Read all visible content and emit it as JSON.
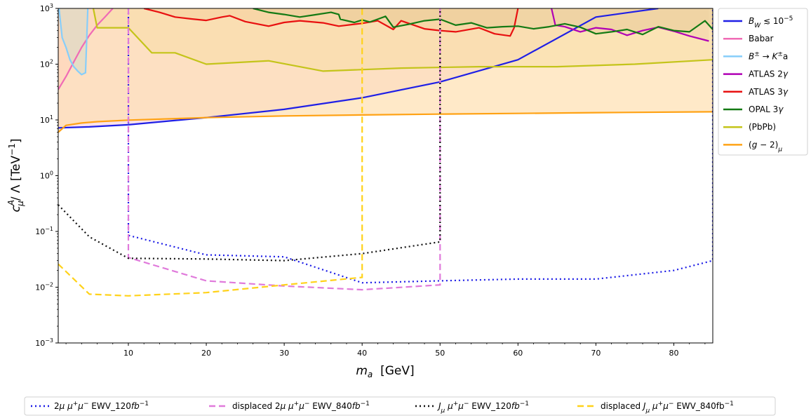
{
  "chart_data": {
    "type": "line",
    "xlabel": "m_a  [GeV]",
    "ylabel": "c_μ^A / Λ [TeV^-1]",
    "xlim": [
      1,
      85
    ],
    "ylim": [
      0.001,
      1000
    ],
    "yscale": "log",
    "x_ticks": [
      10,
      20,
      30,
      40,
      50,
      60,
      70,
      80
    ],
    "x_tick_labels": [
      "10",
      "20",
      "30",
      "40",
      "50",
      "60",
      "70",
      "80"
    ],
    "y_ticks": [
      0.001,
      0.01,
      0.1,
      1,
      10,
      100,
      1000
    ],
    "y_tick_labels": [
      {
        "base": "10",
        "exp": "−3"
      },
      {
        "base": "10",
        "exp": "−2"
      },
      {
        "base": "10",
        "exp": "−1"
      },
      {
        "base": "10",
        "exp": "0"
      },
      {
        "base": "10",
        "exp": "1"
      },
      {
        "base": "10",
        "exp": "2"
      },
      {
        "base": "10",
        "exp": "3"
      }
    ],
    "grid": false,
    "legend_position": "right, outside plot",
    "bottom_legend_position": "below plot",
    "constraints": [
      {
        "name": "B_W ≲ 10^-5",
        "color": "#1f1fe6",
        "fill": "#f4c8dc",
        "fill_opacity": 0.55,
        "x": [
          1,
          5,
          10,
          20,
          30,
          40,
          50,
          60,
          70,
          78
        ],
        "y": [
          7.2,
          7.5,
          8.2,
          11,
          15.5,
          25,
          48,
          120,
          700,
          1000
        ]
      },
      {
        "name": "Babar",
        "color": "#f06bb5",
        "fill": "#f9c0d8",
        "fill_opacity": 0.75,
        "x": [
          1,
          2,
          3,
          4,
          5,
          6,
          7,
          8
        ],
        "y": [
          35,
          60,
          110,
          200,
          330,
          500,
          700,
          1000
        ]
      },
      {
        "name": "B^± → K^±a",
        "color": "#87cefa",
        "fill": "#87cefa",
        "fill_opacity": 0.65,
        "x": [
          1.1,
          1.5,
          2,
          2.5,
          3,
          3.5,
          4,
          4.5,
          4.8
        ],
        "y": [
          1000,
          300,
          200,
          120,
          90,
          75,
          65,
          70,
          1000
        ]
      },
      {
        "name": "ATLAS 2γ",
        "color": "#b000b5",
        "fill": "#c9a0c8",
        "fill_opacity": 0.5,
        "x": [
          64.3,
          64.8,
          66,
          68,
          70,
          72,
          74,
          76,
          78,
          80,
          82,
          84.5
        ],
        "y": [
          1000,
          500,
          470,
          380,
          450,
          420,
          330,
          400,
          460,
          390,
          320,
          260
        ]
      },
      {
        "name": "ATLAS 3γ",
        "color": "#e81010",
        "fill": "#e88070",
        "fill_opacity": 0.5,
        "x": [
          12,
          14,
          16,
          18,
          20,
          22,
          23,
          25,
          28,
          30,
          32,
          35,
          37,
          40,
          42,
          44,
          45,
          48,
          50,
          52,
          55,
          57,
          59,
          59.5,
          60
        ],
        "y": [
          1000,
          850,
          700,
          650,
          610,
          700,
          740,
          580,
          480,
          560,
          600,
          550,
          480,
          540,
          600,
          420,
          600,
          430,
          400,
          380,
          450,
          350,
          320,
          450,
          1000
        ]
      },
      {
        "name": "OPAL 3γ",
        "color": "#147a14",
        "fill": "#9a8060",
        "fill_opacity": 0.55,
        "x": [
          26,
          28,
          30,
          32,
          34,
          36,
          37,
          37.2,
          39,
          40,
          41,
          42,
          43,
          44,
          46,
          48,
          50,
          52,
          54,
          56,
          58,
          60,
          62,
          64,
          66,
          68,
          70,
          72,
          74,
          76,
          78,
          80,
          82,
          84,
          85
        ],
        "y": [
          1000,
          850,
          780,
          700,
          770,
          850,
          780,
          640,
          560,
          620,
          570,
          640,
          720,
          460,
          520,
          600,
          640,
          500,
          550,
          450,
          470,
          480,
          430,
          470,
          530,
          460,
          350,
          380,
          420,
          340,
          470,
          400,
          380,
          600,
          420
        ]
      },
      {
        "name": "(PbPb)",
        "color": "#c4c41a",
        "fill": "#ddd070",
        "fill_opacity": 0.45,
        "x": [
          5.5,
          6,
          8,
          10,
          13,
          16,
          20,
          28,
          35,
          45,
          55,
          65,
          75,
          85
        ],
        "y": [
          1000,
          450,
          450,
          450,
          160,
          160,
          100,
          115,
          75,
          85,
          90,
          90,
          100,
          120
        ]
      },
      {
        "name": "(g − 2)_μ",
        "color": "#ffa214",
        "fill": "#ffe0b0",
        "fill_opacity": 0.7,
        "x": [
          1,
          2,
          4,
          6,
          10,
          20,
          30,
          40,
          50,
          60,
          70,
          85
        ],
        "y": [
          6,
          8,
          8.8,
          9.3,
          9.9,
          11,
          11.8,
          12.3,
          12.7,
          13.1,
          13.5,
          14
        ]
      }
    ],
    "projections": [
      {
        "name": "2μ μ^+μ^− EWV_120fb^-1",
        "color": "#1a1ae6",
        "style": "dotted",
        "x": [
          10,
          10,
          20,
          30,
          40,
          50,
          60,
          70,
          80,
          85,
          85
        ],
        "y": [
          1000,
          0.085,
          0.038,
          0.035,
          0.012,
          0.013,
          0.014,
          0.014,
          0.02,
          0.03,
          1000
        ]
      },
      {
        "name": "displaced 2μ μ^+μ^− EWV_840fb^-1",
        "color": "#e07adb",
        "style": "dashed",
        "x": [
          10,
          10,
          20,
          30,
          40,
          50,
          50
        ],
        "y": [
          1000,
          0.034,
          0.013,
          0.0105,
          0.009,
          0.011,
          1000
        ]
      },
      {
        "name": "J_μ μ^+μ^− EWV_120fb^-1",
        "color": "#111111",
        "style": "dotted",
        "x": [
          1,
          5,
          10,
          20,
          30,
          40,
          50,
          50
        ],
        "y": [
          0.3,
          0.08,
          0.033,
          0.032,
          0.03,
          0.04,
          0.065,
          1000
        ]
      },
      {
        "name": "displaced J_μ μ^+μ^− EWV_840fb^-1",
        "color": "#ffd21a",
        "style": "dashed",
        "x": [
          1,
          5,
          10,
          20,
          30,
          40,
          40
        ],
        "y": [
          0.026,
          0.0075,
          0.007,
          0.008,
          0.011,
          0.015,
          1000
        ]
      }
    ]
  },
  "legend": {
    "right": [
      {
        "key": "bw",
        "parts": [
          [
            "B",
            "i"
          ],
          [
            "W",
            "sub-i"
          ],
          [
            " ≲ 10",
            ""
          ],
          [
            "−5",
            "sup"
          ]
        ]
      },
      {
        "key": "babar",
        "parts": [
          [
            "Babar",
            ""
          ]
        ]
      },
      {
        "key": "bk",
        "parts": [
          [
            "B",
            "i"
          ],
          [
            "±",
            "sup"
          ],
          [
            " → ",
            ""
          ],
          [
            "K",
            "i"
          ],
          [
            "±",
            "sup"
          ],
          [
            "a",
            ""
          ]
        ]
      },
      {
        "key": "atlas2",
        "parts": [
          [
            "ATLAS 2",
            ""
          ],
          [
            "γ",
            "i"
          ]
        ]
      },
      {
        "key": "atlas3",
        "parts": [
          [
            "ATLAS 3",
            ""
          ],
          [
            "γ",
            "i"
          ]
        ]
      },
      {
        "key": "opal",
        "parts": [
          [
            "OPAL 3",
            ""
          ],
          [
            "γ",
            "i"
          ]
        ]
      },
      {
        "key": "pbpb",
        "parts": [
          [
            "(PbPb)",
            ""
          ]
        ]
      },
      {
        "key": "g2",
        "parts": [
          [
            "(",
            ""
          ],
          [
            "g",
            "i"
          ],
          [
            " − 2)",
            ""
          ],
          [
            "μ",
            "sub-i"
          ]
        ]
      }
    ],
    "bottom": [
      {
        "key": "p1",
        "parts": [
          [
            "2",
            ""
          ],
          [
            "μ",
            "i"
          ],
          [
            " ",
            ""
          ],
          [
            "μ",
            "i"
          ],
          [
            "+",
            "sup"
          ],
          [
            "μ",
            "i"
          ],
          [
            "−",
            "sup"
          ],
          [
            " EWV_120",
            ""
          ],
          [
            "fb",
            "i"
          ],
          [
            "−1",
            "sup"
          ]
        ]
      },
      {
        "key": "p2",
        "parts": [
          [
            "displaced 2",
            ""
          ],
          [
            "μ",
            "i"
          ],
          [
            " ",
            ""
          ],
          [
            "μ",
            "i"
          ],
          [
            "+",
            "sup"
          ],
          [
            "μ",
            "i"
          ],
          [
            "−",
            "sup"
          ],
          [
            " EWV_840",
            ""
          ],
          [
            "fb",
            "i"
          ],
          [
            "−1",
            "sup"
          ]
        ]
      },
      {
        "key": "p3",
        "parts": [
          [
            "J",
            "i"
          ],
          [
            "μ",
            "sub-i"
          ],
          [
            " ",
            ""
          ],
          [
            "μ",
            "i"
          ],
          [
            "+",
            "sup"
          ],
          [
            "μ",
            "i"
          ],
          [
            "−",
            "sup"
          ],
          [
            " EWV_120",
            ""
          ],
          [
            "fb",
            "i"
          ],
          [
            "−1",
            "sup"
          ]
        ]
      },
      {
        "key": "p4",
        "parts": [
          [
            "displaced ",
            ""
          ],
          [
            "J",
            "i"
          ],
          [
            "μ",
            "sub-i"
          ],
          [
            " ",
            ""
          ],
          [
            "μ",
            "i"
          ],
          [
            "+",
            "sup"
          ],
          [
            "μ",
            "i"
          ],
          [
            "−",
            "sup"
          ],
          [
            " EWV_840fb",
            ""
          ],
          [
            "−1",
            "sup"
          ]
        ]
      }
    ]
  }
}
